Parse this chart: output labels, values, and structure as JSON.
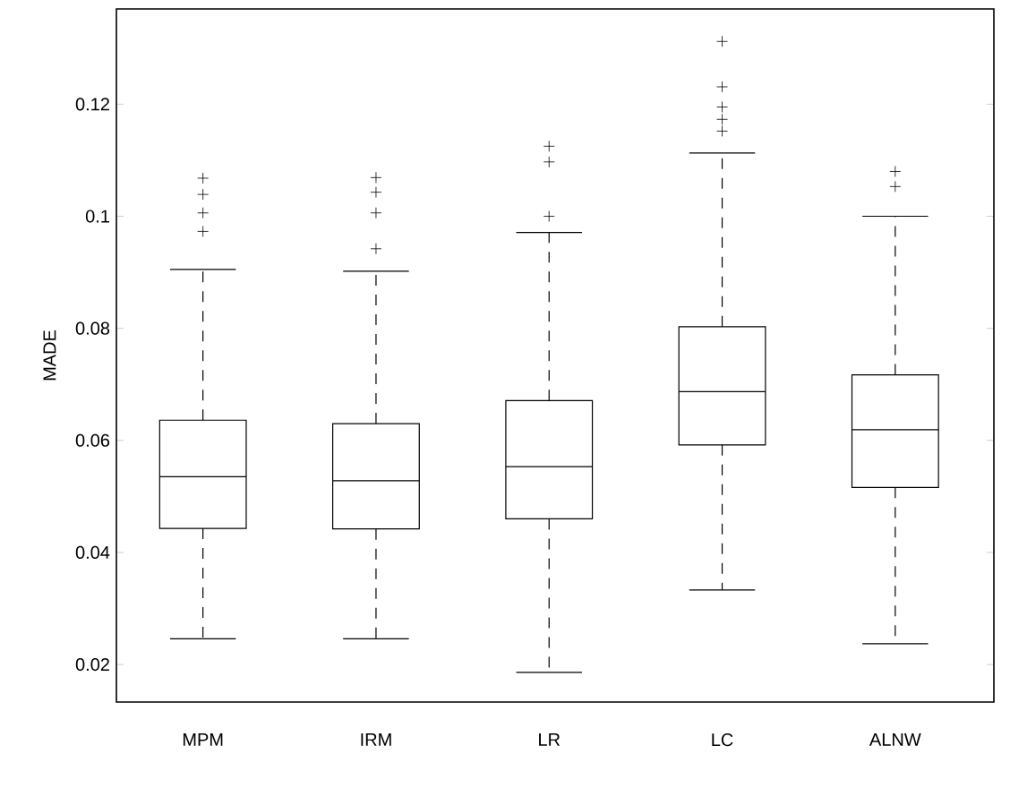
{
  "chart_data": {
    "type": "box",
    "ylabel": "MADE",
    "categories": [
      "MPM",
      "IRM",
      "LR",
      "LC",
      "ALNW"
    ],
    "boxes": [
      {
        "low": 0.0246,
        "q1": 0.0443,
        "median": 0.0535,
        "q3": 0.0636,
        "high": 0.0905,
        "outliers": [
          0.1068,
          0.1039,
          0.1006,
          0.0973
        ]
      },
      {
        "low": 0.0246,
        "q1": 0.0442,
        "median": 0.0528,
        "q3": 0.063,
        "high": 0.0902,
        "outliers": [
          0.1069,
          0.1043,
          0.1006,
          0.0942
        ]
      },
      {
        "low": 0.0186,
        "q1": 0.046,
        "median": 0.0553,
        "q3": 0.0671,
        "high": 0.0971,
        "outliers": [
          0.1125,
          0.1097,
          0.1
        ]
      },
      {
        "low": 0.0333,
        "q1": 0.0592,
        "median": 0.0687,
        "q3": 0.0803,
        "high": 0.1113,
        "outliers": [
          0.1312,
          0.1231,
          0.1195,
          0.1173,
          0.1152
        ]
      },
      {
        "low": 0.0237,
        "q1": 0.0516,
        "median": 0.0619,
        "q3": 0.0717,
        "high": 0.1,
        "outliers": [
          0.108,
          0.1053
        ]
      }
    ],
    "ylim": [
      0.0133,
      0.137
    ],
    "yticks": [
      0.02,
      0.04,
      0.06,
      0.08,
      0.1,
      0.12
    ]
  }
}
